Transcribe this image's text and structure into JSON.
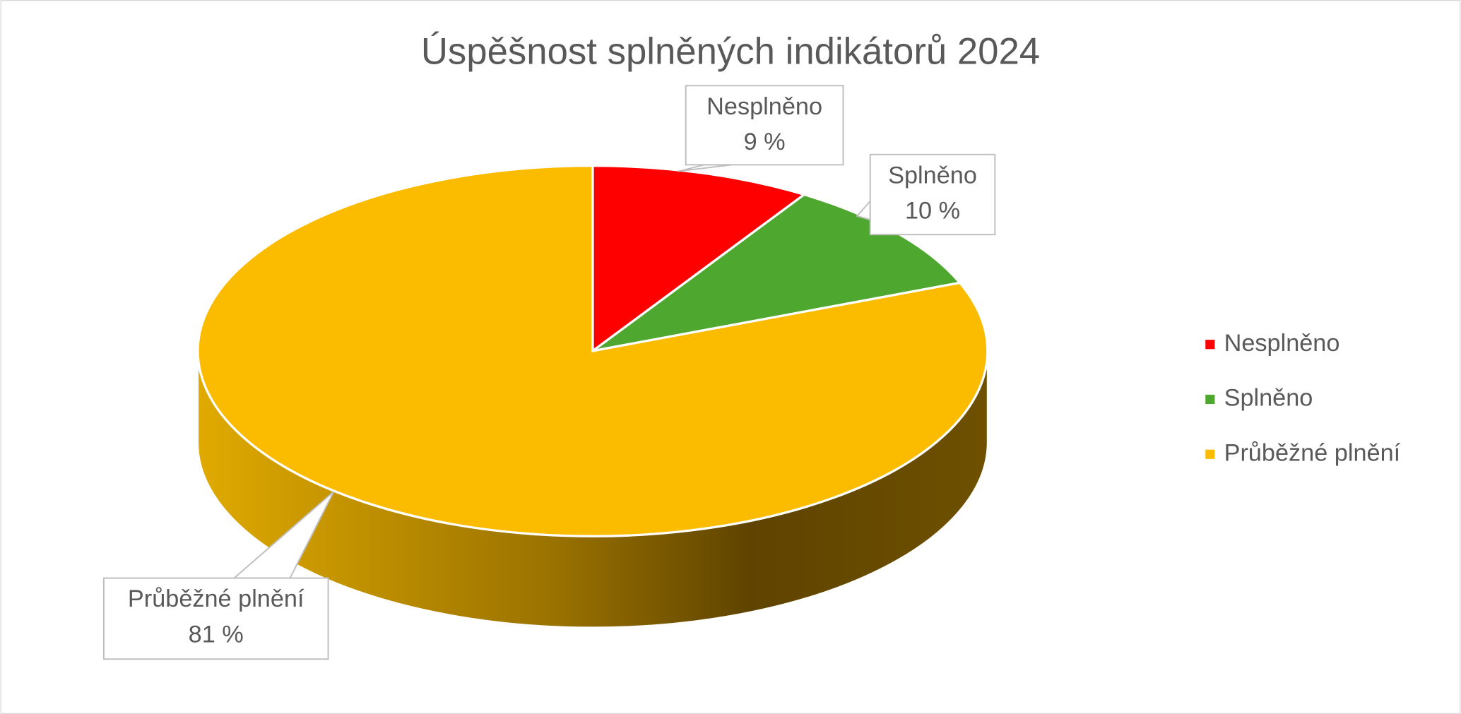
{
  "chart_data": {
    "type": "pie",
    "title": "Úspěšnost splněných indikátorů 2024",
    "categories": [
      "Nesplněno",
      "Splněno",
      "Průběžné plnění"
    ],
    "values": [
      9,
      10,
      81
    ],
    "value_labels": [
      "9 %",
      "10 %",
      "81 %"
    ],
    "colors": [
      "#ff0000",
      "#4ea72e",
      "#fbbc00"
    ],
    "legend": "right"
  }
}
